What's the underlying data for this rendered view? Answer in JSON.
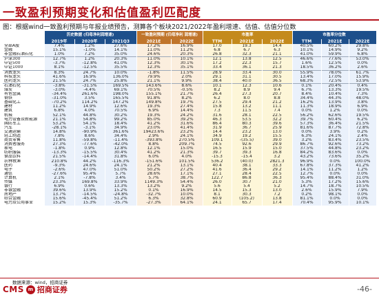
{
  "title": "一致盈利预期变化和估值盈利匹配度",
  "subtitle": "图：根据wind一致盈利预期与年报业绩预告，测算各个板块2021/2022年盈利增速、估值、估值分位数",
  "groups": {
    "hist": "历史数据\n(归母净利润增速)",
    "cons": "一致盈利预期 (归母净利\n润增速)",
    "mkt": "市盈率",
    "pct": "市盈率分位数"
  },
  "columns": [
    "2019年",
    "2020年",
    "2021Q3",
    "2021E",
    "2022E",
    "TTM",
    "2021E",
    "2022E",
    "TTM",
    "2021E",
    "2022E"
  ],
  "rows": [
    [
      "全部A股",
      "7.4%",
      "1.2%",
      "27.6%",
      "17.2%",
      "16.9%",
      "17.0",
      "19.3",
      "14.4",
      "40.5%",
      "60.2%",
      "29.8%"
    ],
    [
      "金融",
      "15.1%",
      "-1.0%",
      "14.1%",
      "11.0%",
      "11.2%",
      "6.8",
      "6.7",
      "6.3",
      "10.1%",
      "14.9%",
      "9.2%"
    ],
    [
      "非金融石油石化",
      "1.0%",
      "7.2%",
      "35.0%",
      "24.6%",
      "20.3%",
      "26.8",
      "32.3",
      "21.1",
      "41.0%",
      "59.9%",
      "6.8%"
    ],
    [
      "沪深300",
      "12.7%",
      "1.2%",
      "20.3%",
      "11.0%",
      "10.1%",
      "12.1",
      "13.8",
      "12.5",
      "46.6%",
      "77.6%",
      "53.0%"
    ],
    [
      "中证500",
      "-3.7%",
      "-12.8%",
      "41.0%",
      "12.3%",
      "30.1%",
      "17.2",
      "22.3",
      "15.7",
      "1.6%",
      "12.5%",
      "0.0%"
    ],
    [
      "中证1000",
      "8.1%",
      "-12.5%",
      "35.5%",
      "12.3%",
      "35.1%",
      "33.4",
      "36.1",
      "21.3",
      "18.5%",
      "36.2%",
      "2.6%"
    ],
    [
      "消费龙头",
      "8.3%",
      "24.7%",
      "10.0%",
      "-1.8%",
      "11.5%",
      "28.9",
      "33.4",
      "30.0",
      "55.9%",
      "78.0%",
      "61.7%"
    ],
    [
      "科技龙头",
      "41.6%",
      "16.9%",
      "136.0%",
      "79.9%",
      "2.0%",
      "29.1",
      "31.1",
      "30.5",
      "13.4%",
      "17.0%",
      "15.9%"
    ],
    [
      "医药龙头",
      "21.5%",
      "24.7%",
      "25.8%",
      "21.1%",
      "9.9%",
      "38.4",
      "40.0",
      "36.5",
      "68.3%",
      "72.5%",
      "53.9%"
    ],
    [
      "石油石化",
      "-3.8%",
      "-31.5%",
      "169.5%",
      "143.6%",
      "8.6%",
      "10.1",
      "12.3",
      "10.6",
      "0.1%",
      "20.4%",
      "0.4%"
    ],
    [
      "煤炭",
      "-3.0%",
      "-4.4%",
      "69.1%",
      "70.5%",
      "-0.5%",
      "8.2",
      "8.9",
      "9.4",
      "6.7%",
      "13.3%",
      "19.5%"
    ],
    [
      "有色金属",
      "-34.4%",
      "261.6%",
      "198.0%",
      "155.1%",
      "21.7%",
      "26.4",
      "27.3",
      "20.7",
      "8.4%",
      "10.4%",
      "7.3%"
    ],
    [
      "钢铁",
      "-31.0%",
      "3.5%",
      "165.5%",
      "91.8%",
      "8.2%",
      "6.2",
      "8.0",
      "8.8",
      "34.4%",
      "44.3%",
      "48.0%"
    ],
    [
      "基础化工",
      "-70.2%",
      "114.2%",
      "147.2%",
      "149.8%",
      "19.7%",
      "27.5",
      "29.4",
      "21.2",
      "16.2%",
      "13.9%",
      "3.8%"
    ],
    [
      "建材",
      "11.2%",
      "14.9%",
      "12.6%",
      "19.3%",
      "27.4%",
      "15.8",
      "13.2",
      "11.1",
      "11.3%",
      "18.9%",
      "6.9%"
    ],
    [
      "建筑",
      "6.8%",
      "4.0%",
      "70.5%",
      "6.9%",
      "14.4%",
      "7.3",
      "11.5",
      "7.4",
      "0.0%",
      "1.2%",
      "0.0%"
    ],
    [
      "机械",
      "52.1%",
      "44.8%",
      "30.2%",
      "19.3%",
      "24.2%",
      "31.6",
      "28.1",
      "22.5",
      "56.2%",
      "62.6%",
      "19.5%"
    ],
    [
      "电力设备及新能源",
      "21.1%",
      "54.8%",
      "99.2%",
      "85.0%",
      "39.2%",
      "46.3",
      "53.5",
      "32.2",
      "39.7%",
      "60.4%",
      "6.2%"
    ],
    [
      "国防军工",
      "53.2%",
      "54.1%",
      "18.4%",
      "41.2%",
      "31.6%",
      "86.4",
      "80.3",
      "39.6",
      "57.3%",
      "36.4%",
      "21.5%"
    ],
    [
      "汽车",
      "-28.1%",
      "-3.1%",
      "34.9%",
      "23.0%",
      "41.4%",
      "31.9",
      "36.7",
      "25.9",
      "81.6%",
      "87.7%",
      "72.8%"
    ],
    [
      "交通运输",
      "14.8%",
      "-90.9%",
      "361.6%",
      "19423.6%",
      "23.2%",
      "14.4",
      "23.2",
      "13.0",
      "0.0%",
      "3.9%",
      "0.2%"
    ],
    [
      "轻工制造",
      "7.8%",
      "8.6%",
      "34.4%",
      "2.9%",
      "24.1%",
      "34.9",
      "19.2",
      "15.5",
      "6.3%",
      "24.1%",
      "2.4%"
    ],
    [
      "商贸零售",
      "11.8%",
      "-59.8%",
      "-11.4%",
      "-393.8%",
      "270.5%",
      "109.1",
      "-(35.5)",
      "39.0",
      "3.2%",
      "83.4%",
      "23.5%"
    ],
    [
      "消费者服务",
      "27.3%",
      "-77.6%",
      "-42.0%",
      "8.8%",
      "209.7%",
      "74.5",
      "92.6",
      "29.9",
      "86.7%",
      "92.6%",
      "73.2%"
    ],
    [
      "家电",
      "-1.8%",
      "0.9%",
      "12.8%",
      "12.1%",
      "15.0%",
      "16.5",
      "15.9",
      "15.0",
      "37.5%",
      "44.8%",
      "23.2%"
    ],
    [
      "纺织服装",
      "-13.3%",
      "-15.5%",
      "30.4%",
      "41.2%",
      "21.3%",
      "39.7",
      "39.3",
      "16.8",
      "84.2%",
      "83.6%",
      "0.0%"
    ],
    [
      "食品饮料",
      "21.5%",
      "-14.4%",
      "31.8%",
      "6.0%",
      "4.0%",
      "-15.3",
      "-15.4",
      "3.2",
      "43.2%",
      "73.6%",
      "35.2%"
    ],
    [
      "农林牧渔",
      "210.8%",
      "44.2%",
      "-116.3%",
      "-151.6%",
      "101.5%",
      "536.2",
      "(40.0)",
      "2821.3",
      "96.9%",
      "0.0%",
      "100.0%"
    ],
    [
      "医药",
      "-9.3%",
      "24.6%",
      "24.1%",
      "21.2%",
      "13.1%",
      "40.4",
      "38.1",
      "33.3",
      "67.8%",
      "37.3%",
      "41.2%"
    ],
    [
      "电子",
      "-2.6%",
      "47.0%",
      "51.0%",
      "50.2%",
      "27.2%",
      "41.6",
      "36.4",
      "29.2",
      "14.1%",
      "11.2%",
      "1.2%"
    ],
    [
      "通信",
      "-27.6%",
      "95.4%",
      "5.7%",
      "28.6%",
      "17.1%",
      "27.1",
      "28.4",
      "22.5",
      "12.7%",
      "0.0%",
      "0.0%"
    ],
    [
      "计算机",
      "2.1%",
      "-7.8%",
      "3.4%",
      "5.7%",
      "38.7%",
      "122.7",
      "86.8",
      "36.3",
      "95.4%",
      "88.4%",
      "31.0%"
    ],
    [
      "传媒",
      "23.3%",
      "169.8%",
      "33.9%",
      "1149.3%",
      "54.4%",
      "26.0",
      "30.7",
      "21.0",
      "5.3%",
      "17.2%",
      "15.6%"
    ],
    [
      "银行",
      "6.9%",
      "0.6%",
      "13.3%",
      "13.2%",
      "9.2%",
      "5.6",
      "5.4",
      "5.2",
      "14.7%",
      "18.7%",
      "10.5%"
    ],
    [
      "非银金融",
      "39.6%",
      "13.9%",
      "15.2%",
      "0.1%",
      "16.9%",
      "14.5",
      "15.3",
      "13.0",
      "2.6%",
      "15.9%",
      "7.9%"
    ],
    [
      "房地产",
      "13.7%",
      "-14.5%",
      "-24.8%",
      "-32.7%",
      "10.0%",
      "8.1",
      "30.3",
      "7.2",
      "0.2%",
      "98.1%",
      "0.0%"
    ],
    [
      "综合金融",
      "15.6%",
      "-45.4%",
      "51.2%",
      "6.3%",
      "32.8%",
      "60.9",
      "(105.2)",
      "13.8",
      "81.1%",
      "0.0%",
      "0.0%"
    ],
    [
      "电力及公用事业",
      "15.2%",
      "15.3%",
      "-35.7%",
      "-27.3%",
      "64.1%",
      "24.1",
      "65.7",
      "17.4",
      "70.4%",
      "95.9%",
      "10.1%"
    ]
  ],
  "source": "数据来源：wind，招商证券",
  "logo": {
    "en": "CMS",
    "mark": "m",
    "cn": "招商证券"
  },
  "page_number": "-46-"
}
